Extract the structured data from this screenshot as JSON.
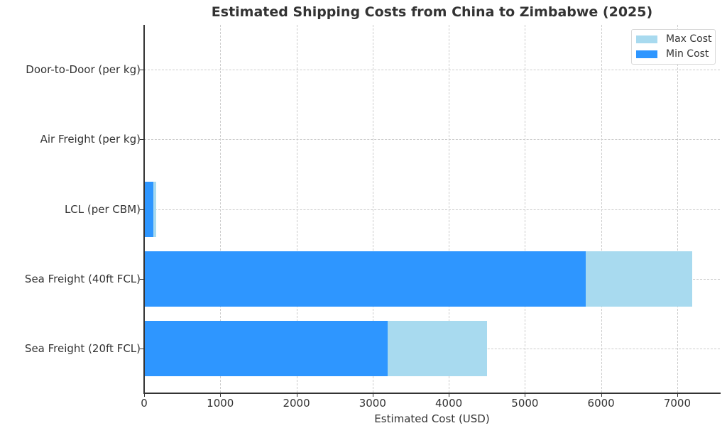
{
  "chart_data": {
    "type": "bar",
    "orientation": "horizontal",
    "title": "Estimated Shipping Costs from China to Zimbabwe (2025)",
    "xlabel": "Estimated Cost (USD)",
    "ylabel": "",
    "xlim": [
      0,
      7560
    ],
    "grid": true,
    "legend_position": "upper right",
    "categories": [
      "Sea Freight (20ft FCL)",
      "Sea Freight (40ft FCL)",
      "LCL (per CBM)",
      "Air Freight (per kg)",
      "Door-to-Door (per kg)"
    ],
    "series": [
      {
        "name": "Max Cost",
        "color": "#a8daef",
        "values": [
          4500,
          7200,
          160,
          8,
          12
        ]
      },
      {
        "name": "Min Cost",
        "color": "#2e96ff",
        "values": [
          3200,
          5800,
          120,
          5,
          7
        ]
      }
    ],
    "x_ticks": [
      0,
      1000,
      2000,
      3000,
      4000,
      5000,
      6000,
      7000
    ]
  },
  "labels": {
    "title": "Estimated Shipping Costs from China to Zimbabwe (2025)",
    "xaxis": "Estimated Cost (USD)",
    "legend": [
      "Max Cost",
      "Min Cost"
    ],
    "categories": [
      "Door-to-Door (per kg)",
      "Air Freight (per kg)",
      "LCL (per CBM)",
      "Sea Freight (40ft FCL)",
      "Sea Freight (20ft FCL)"
    ],
    "ticks": [
      "0",
      "1000",
      "2000",
      "3000",
      "4000",
      "5000",
      "6000",
      "7000"
    ]
  }
}
